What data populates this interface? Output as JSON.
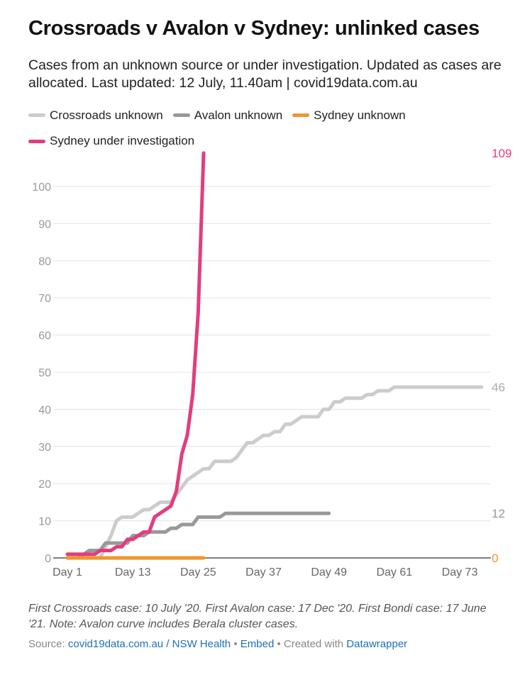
{
  "title": "Crossroads v Avalon v Sydney: unlinked cases",
  "subtitle": "Cases from an unknown source or under investigation. Updated as cases are allocated. Last updated: 12 July, 11.40am | covid19data.com.au",
  "note": "First Crossroads case: 10 July '20. First Avalon case: 17 Dec '20. First Bondi case: 17 June '21. Note: Avalon curve includes Berala cluster cases.",
  "source": {
    "label": "Source:",
    "link": "covid19data.com.au / NSW Health",
    "sep1": "•",
    "embed": "Embed",
    "sep2": "• Created with",
    "dw": "Datawrapper"
  },
  "chart_data": {
    "type": "line",
    "xlabel": "",
    "ylabel": "",
    "xlim": [
      1,
      77
    ],
    "ylim": [
      0,
      100
    ],
    "xticks": [
      1,
      13,
      25,
      37,
      49,
      61,
      73
    ],
    "xtick_labels": [
      "Day 1",
      "Day 13",
      "Day 25",
      "Day 37",
      "Day 49",
      "Day 61",
      "Day 73"
    ],
    "yticks": [
      0,
      10,
      20,
      30,
      40,
      50,
      60,
      70,
      80,
      90,
      100
    ],
    "series": [
      {
        "name": "Crossroads unknown",
        "color": "#cccccc",
        "end_label": "46",
        "values": [
          0,
          0,
          0,
          0,
          0,
          0,
          0,
          3,
          6,
          10,
          11,
          11,
          11,
          12,
          13,
          13,
          14,
          15,
          15,
          15,
          17,
          19,
          21,
          22,
          23,
          24,
          24,
          26,
          26,
          26,
          26,
          27,
          29,
          31,
          31,
          32,
          33,
          33,
          34,
          34,
          36,
          36,
          37,
          38,
          38,
          38,
          38,
          40,
          40,
          42,
          42,
          43,
          43,
          43,
          43,
          44,
          44,
          45,
          45,
          45,
          46,
          46,
          46,
          46,
          46,
          46,
          46,
          46,
          46,
          46,
          46,
          46,
          46,
          46,
          46,
          46,
          46
        ]
      },
      {
        "name": "Avalon unknown",
        "color": "#999999",
        "end_label": "12",
        "values": [
          0,
          0,
          0,
          1,
          2,
          2,
          2,
          4,
          4,
          4,
          4,
          4,
          6,
          6,
          6,
          7,
          7,
          7,
          7,
          8,
          8,
          9,
          9,
          9,
          11,
          11,
          11,
          11,
          11,
          12,
          12,
          12,
          12,
          12,
          12,
          12,
          12,
          12,
          12,
          12,
          12,
          12,
          12,
          12,
          12,
          12,
          12,
          12,
          12
        ]
      },
      {
        "name": "Sydney unknown",
        "color": "#f0962e",
        "end_label": "0",
        "values": [
          0,
          0,
          0,
          0,
          0,
          0,
          0,
          0,
          0,
          0,
          0,
          0,
          0,
          0,
          0,
          0,
          0,
          0,
          0,
          0,
          0,
          0,
          0,
          0,
          0,
          0
        ]
      },
      {
        "name": "Sydney under investigation",
        "color": "#e23d80",
        "end_label": "109",
        "values": [
          1,
          1,
          1,
          1,
          1,
          1,
          2,
          2,
          2,
          3,
          3,
          5,
          5,
          6,
          7,
          7,
          11,
          12,
          13,
          14,
          18,
          28,
          33,
          44,
          66,
          109
        ]
      }
    ]
  }
}
